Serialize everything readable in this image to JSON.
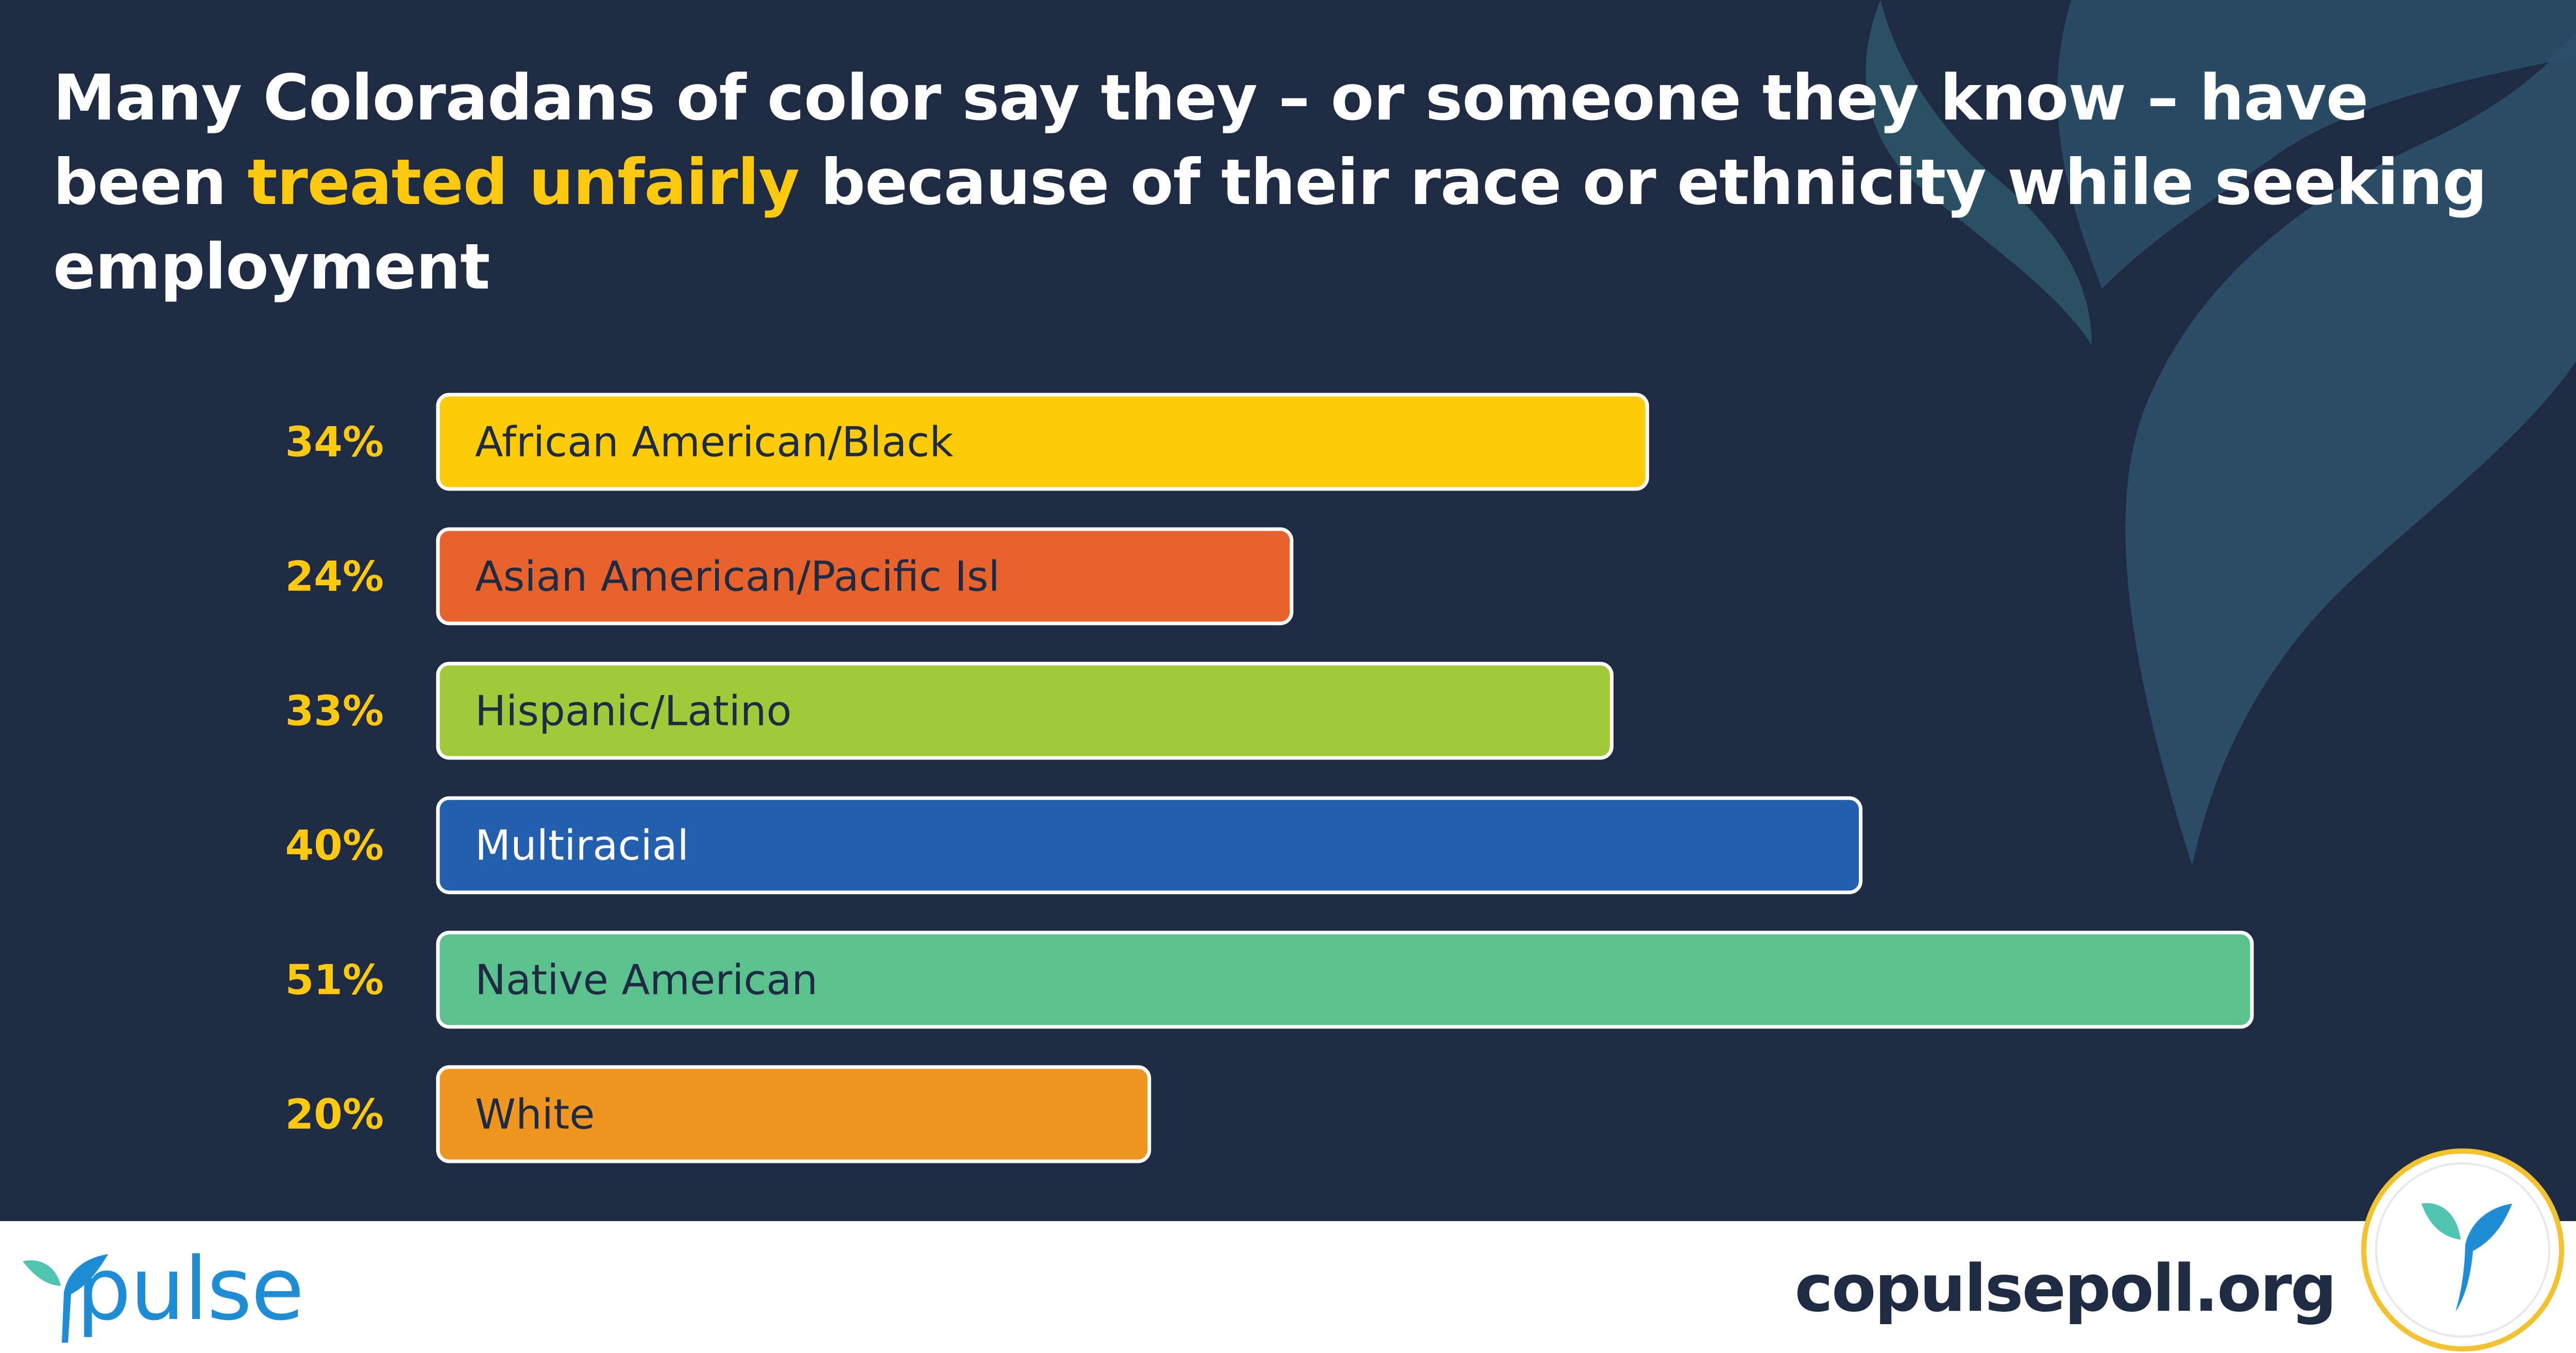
{
  "title": {
    "before": "Many Coloradans of color say they – or someone they know – have been ",
    "highlight": "treated unfairly",
    "after": " because of their race or ethnicity while seeking employment"
  },
  "colors": {
    "background": "#1f2b43",
    "highlight": "#fcc90e",
    "value_label": "#fcc90e",
    "bar_border": "#ffffff",
    "brand_blue": "#1f8dd6",
    "brand_teal": "#4fc4b1"
  },
  "chart_data": {
    "type": "bar",
    "orientation": "horizontal",
    "categories": [
      "African American/Black",
      "Asian American/Pacific Isl",
      "Hispanic/Latino",
      "Multiracial",
      "Native American",
      "White"
    ],
    "values": [
      34,
      24,
      33,
      40,
      51,
      20
    ],
    "value_labels": [
      "34%",
      "24%",
      "33%",
      "40%",
      "51%",
      "20%"
    ],
    "bar_colors": [
      "#fccc0a",
      "#e8632c",
      "#a2c93a",
      "#245fae",
      "#5bc18e",
      "#ef9622"
    ],
    "label_colors": [
      "#1f2b43",
      "#1f2b43",
      "#1f2b43",
      "#ffffff",
      "#1f2b43",
      "#1f2b43"
    ],
    "title": "",
    "xlabel": "",
    "ylabel": "",
    "xlim": [
      0,
      51
    ],
    "grid": false,
    "legend": "none"
  },
  "footer": {
    "logo_text": "pulse",
    "url": "copulsepoll.org"
  },
  "icons": {
    "logo": "pulse-leaf-icon",
    "badge": "pulse-leaf-badge-icon"
  }
}
